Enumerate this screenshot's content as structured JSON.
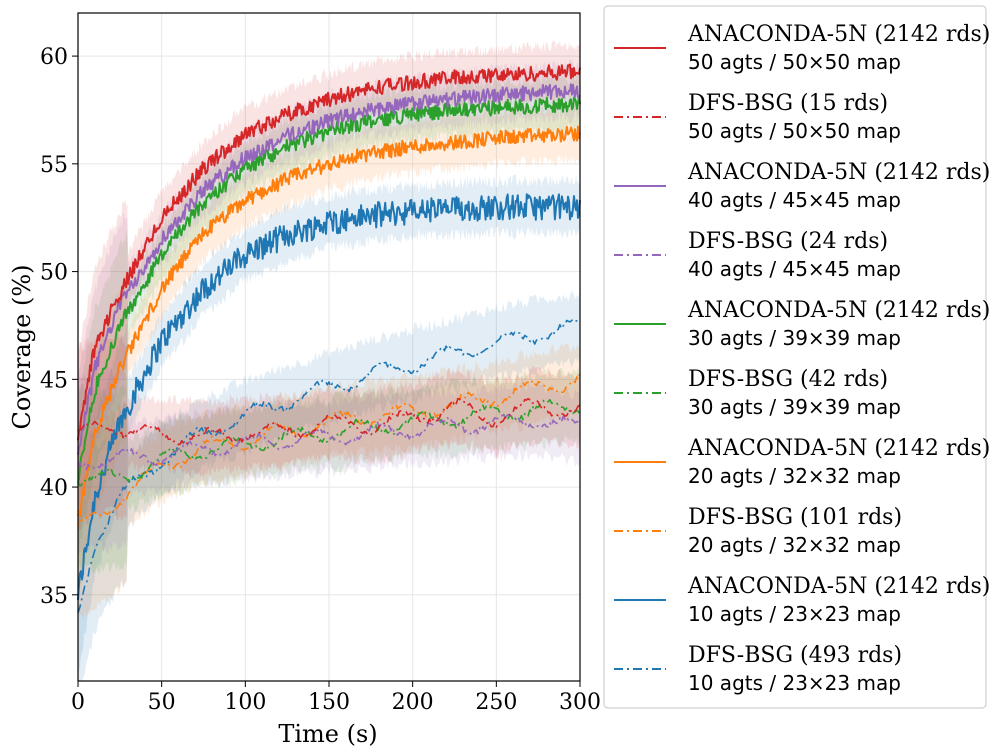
{
  "chart_data": {
    "type": "line",
    "title": "",
    "xlabel": "Time (s)",
    "ylabel": "Coverage (%)",
    "xlim": [
      0,
      300
    ],
    "ylim": [
      31,
      62
    ],
    "xticks": [
      "0",
      "50",
      "100",
      "150",
      "200",
      "250",
      "300"
    ],
    "yticks": [
      "35",
      "40",
      "45",
      "50",
      "55",
      "60"
    ],
    "grid": true,
    "legend_position": "outside-right",
    "series": [
      {
        "name": "ANACONDA-5N (2142 rds)",
        "subtitle": "50 agts / 50×50 map",
        "color": "#d62728",
        "style": "solid",
        "x": [
          0,
          10,
          25,
          50,
          75,
          100,
          125,
          150,
          175,
          200,
          225,
          250,
          275,
          300
        ],
        "y": [
          42.5,
          46.5,
          49,
          52.5,
          54.8,
          56.4,
          57.3,
          58,
          58.5,
          58.8,
          59,
          59.1,
          59.2,
          59.3
        ]
      },
      {
        "name": "DFS-BSG (15 rds)",
        "subtitle": "50 agts / 50×50 map",
        "color": "#d62728",
        "style": "dashdot",
        "x": [
          0,
          10,
          20,
          30,
          50,
          75,
          100,
          125,
          150,
          175,
          200,
          225,
          250,
          275,
          300
        ],
        "y": [
          42.3,
          42.8,
          43,
          42.5,
          42.5,
          42.3,
          42.5,
          42.6,
          43,
          42.8,
          43.2,
          43.7,
          43.2,
          43.8,
          43.5
        ]
      },
      {
        "name": "ANACONDA-5N (2142 rds)",
        "subtitle": "40 agts / 45×45 map",
        "color": "#9467bd",
        "style": "solid",
        "x": [
          0,
          10,
          25,
          50,
          75,
          100,
          125,
          150,
          175,
          200,
          225,
          250,
          275,
          300
        ],
        "y": [
          41.5,
          45.5,
          48.5,
          51.5,
          53.8,
          55.3,
          56.3,
          57,
          57.5,
          57.8,
          58,
          58.2,
          58.3,
          58.4
        ]
      },
      {
        "name": "DFS-BSG (24 rds)",
        "subtitle": "40 agts / 45×45 map",
        "color": "#9467bd",
        "style": "dashdot",
        "x": [
          0,
          10,
          25,
          50,
          75,
          100,
          125,
          150,
          175,
          200,
          225,
          250,
          275,
          300
        ],
        "y": [
          41,
          41.3,
          41.3,
          41.5,
          41.8,
          42,
          42.2,
          42.3,
          42.5,
          42.7,
          42.8,
          43,
          43.1,
          42.7
        ]
      },
      {
        "name": "ANACONDA-5N (2142 rds)",
        "subtitle": "30 agts / 39×39 map",
        "color": "#2ca02c",
        "style": "solid",
        "x": [
          0,
          10,
          25,
          50,
          75,
          100,
          125,
          150,
          175,
          200,
          225,
          250,
          275,
          300
        ],
        "y": [
          40.5,
          44.5,
          47.5,
          50.8,
          53.2,
          54.8,
          55.8,
          56.5,
          57,
          57.3,
          57.5,
          57.6,
          57.7,
          57.8
        ]
      },
      {
        "name": "DFS-BSG (42 rds)",
        "subtitle": "30 agts / 39×39 map",
        "color": "#2ca02c",
        "style": "dashdot",
        "x": [
          0,
          10,
          25,
          50,
          75,
          100,
          125,
          150,
          175,
          200,
          225,
          250,
          275,
          300
        ],
        "y": [
          40.5,
          40.3,
          40.4,
          41.3,
          41.7,
          42,
          42.3,
          42.5,
          42.8,
          43,
          43.2,
          43.4,
          43.6,
          43.8
        ]
      },
      {
        "name": "ANACONDA-5N (2142 rds)",
        "subtitle": "20 agts / 32×32 map",
        "color": "#ff7f0e",
        "style": "solid",
        "x": [
          0,
          10,
          25,
          50,
          75,
          100,
          125,
          150,
          175,
          200,
          225,
          250,
          275,
          300
        ],
        "y": [
          38.5,
          42.5,
          45.5,
          49.2,
          51.8,
          53.3,
          54.3,
          55,
          55.5,
          55.8,
          56,
          56.2,
          56.3,
          56.4
        ]
      },
      {
        "name": "DFS-BSG (101 rds)",
        "subtitle": "20 agts / 32×32 map",
        "color": "#ff7f0e",
        "style": "dashdot",
        "x": [
          0,
          10,
          25,
          50,
          75,
          100,
          125,
          150,
          175,
          200,
          225,
          250,
          275,
          300
        ],
        "y": [
          38,
          38.5,
          39.5,
          41,
          41.8,
          42.2,
          42.6,
          43,
          43.3,
          43.5,
          43.8,
          44.2,
          44.6,
          45
        ]
      },
      {
        "name": "ANACONDA-5N (2142 rds)",
        "subtitle": "10 agts / 23×23 map",
        "color": "#1f77b4",
        "style": "solid",
        "x": [
          0,
          10,
          25,
          50,
          75,
          100,
          125,
          150,
          175,
          200,
          225,
          250,
          275,
          300
        ],
        "y": [
          35,
          39.5,
          43,
          46.8,
          49.2,
          50.8,
          51.7,
          52.3,
          52.6,
          52.8,
          52.9,
          53,
          53,
          53
        ]
      },
      {
        "name": "DFS-BSG (493 rds)",
        "subtitle": "10 agts / 23×23 map",
        "color": "#1f77b4",
        "style": "dashdot",
        "x": [
          0,
          10,
          25,
          50,
          75,
          100,
          125,
          150,
          175,
          200,
          225,
          250,
          275,
          300
        ],
        "y": [
          34,
          37.5,
          39.5,
          41.3,
          42.5,
          43.3,
          44,
          44.6,
          45.2,
          45.7,
          46.2,
          46.7,
          47.1,
          47.4
        ]
      }
    ]
  }
}
